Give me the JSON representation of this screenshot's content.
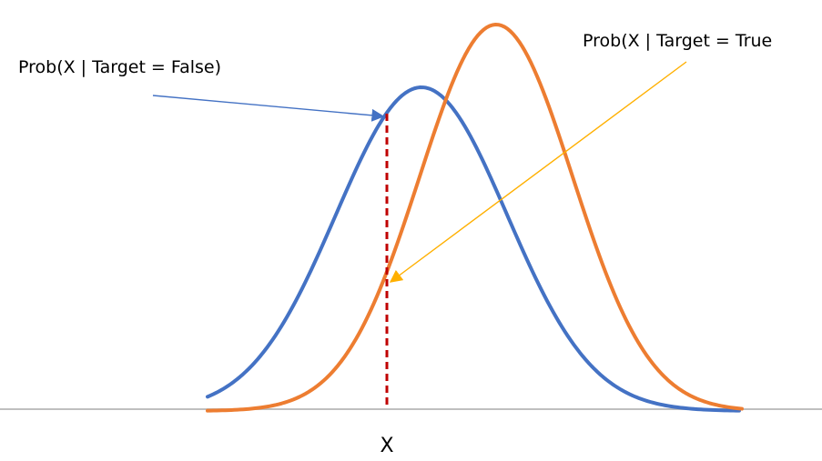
{
  "diagram": {
    "labels": {
      "false_curve": "Prob(X | Target = False)",
      "true_curve": "Prob(X | Target = True",
      "x_marker": "X"
    },
    "colors": {
      "false_curve": "#4472c4",
      "true_curve": "#ed7d31",
      "false_arrow": "#4472c4",
      "true_arrow": "#ffb000",
      "baseline": "#bfbfbf",
      "marker_line": "#c00000"
    }
  }
}
